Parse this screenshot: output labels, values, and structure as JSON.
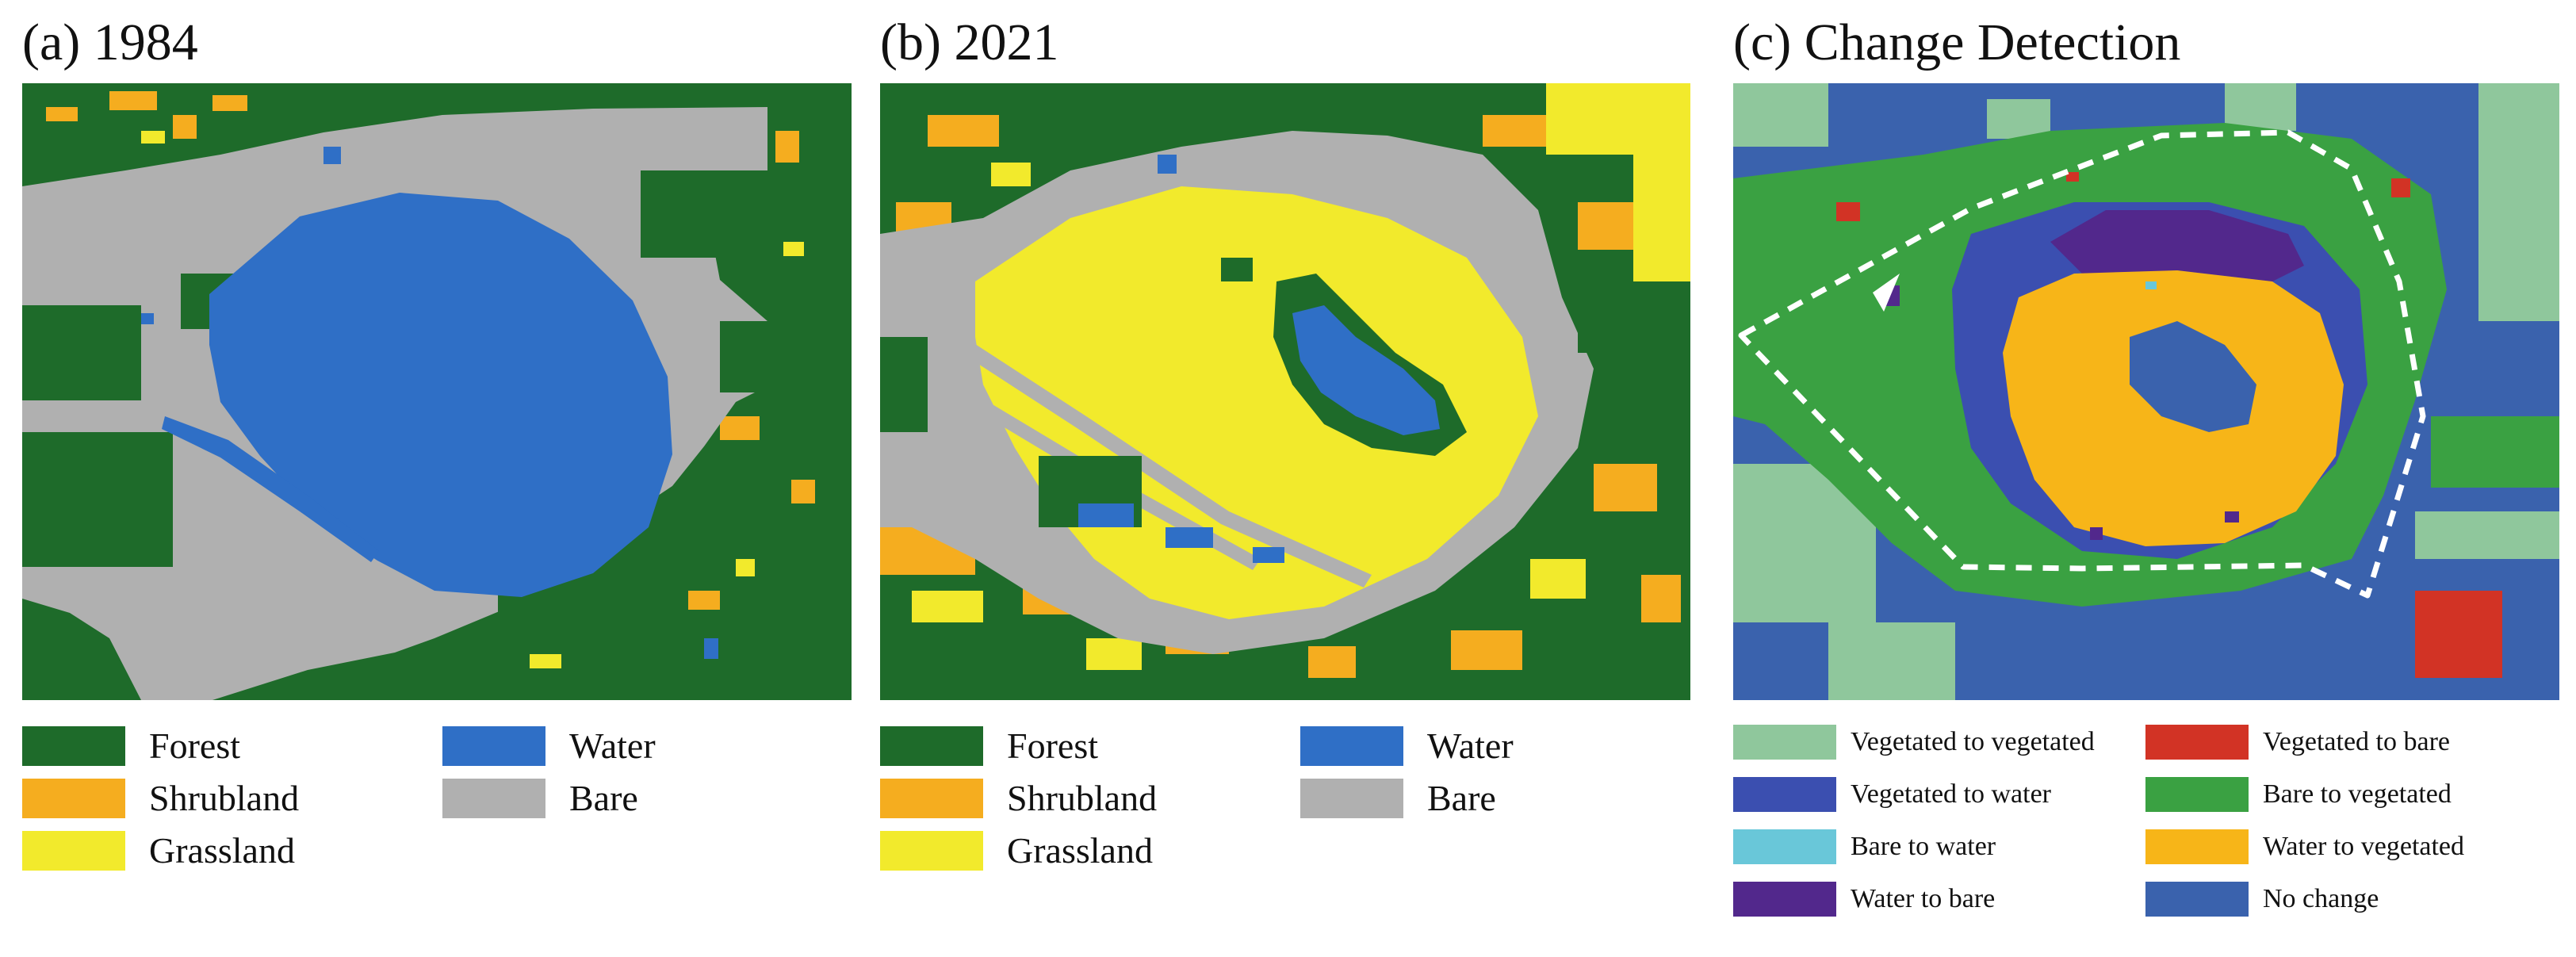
{
  "colors": {
    "forest": "#1e6b2a",
    "shrubland": "#f5ad1f",
    "grassland": "#f2ea2c",
    "water": "#2f6fc6",
    "bare": "#b0b0b0",
    "veg_to_veg": "#8fc79c",
    "veg_to_bare": "#d23325",
    "veg_to_water": "#3b4fb0",
    "bare_to_veg": "#3aa142",
    "bare_to_water": "#69c7d9",
    "water_to_veg": "#f7b518",
    "water_to_bare": "#52288c",
    "no_change": "#3a62ad",
    "boundary": "#ffffff"
  },
  "panels": [
    {
      "title": "(a) 1984",
      "legend": [
        {
          "label": "Forest",
          "color": "#1e6b2a"
        },
        {
          "label": "Water",
          "color": "#2f6fc6"
        },
        {
          "label": "Shrubland",
          "color": "#f5ad1f"
        },
        {
          "label": "Bare",
          "color": "#b0b0b0"
        },
        {
          "label": "Grassland",
          "color": "#f2ea2c"
        }
      ]
    },
    {
      "title": "(b) 2021",
      "legend": [
        {
          "label": "Forest",
          "color": "#1e6b2a"
        },
        {
          "label": "Water",
          "color": "#2f6fc6"
        },
        {
          "label": "Shrubland",
          "color": "#f5ad1f"
        },
        {
          "label": "Bare",
          "color": "#b0b0b0"
        },
        {
          "label": "Grassland",
          "color": "#f2ea2c"
        }
      ]
    },
    {
      "title": "(c) Change Detection",
      "legend": [
        {
          "label": "Vegetated to vegetated",
          "color": "#8fc79c"
        },
        {
          "label": "Vegetated to bare",
          "color": "#d23325"
        },
        {
          "label": "Vegetated to water",
          "color": "#3b4fb0"
        },
        {
          "label": "Bare to vegetated",
          "color": "#3aa142"
        },
        {
          "label": "Bare to water",
          "color": "#69c7d9"
        },
        {
          "label": "Water to vegetated",
          "color": "#f7b518"
        },
        {
          "label": "Water to bare",
          "color": "#52288c"
        },
        {
          "label": "No change",
          "color": "#3a62ad"
        }
      ]
    }
  ]
}
